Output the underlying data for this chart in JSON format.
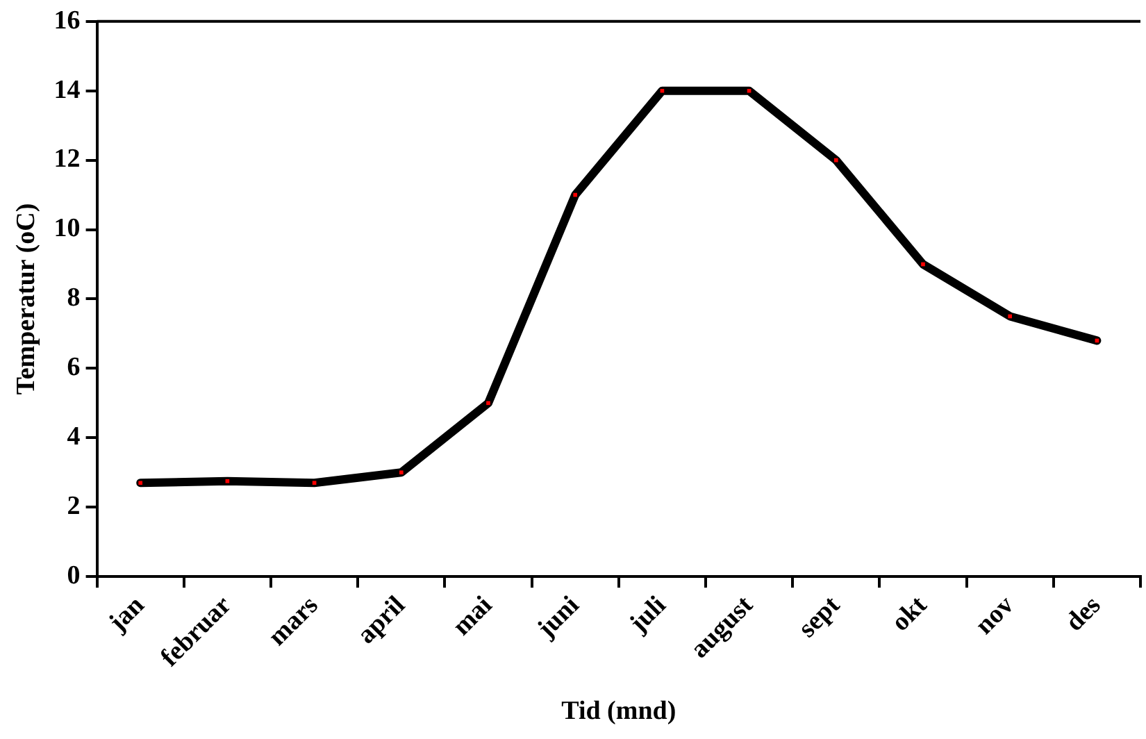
{
  "chart_data": {
    "type": "line",
    "xlabel": "Tid (mnd)",
    "ylabel": "Temperatur (oC)",
    "categories": [
      "jan",
      "februar",
      "mars",
      "april",
      "mai",
      "juni",
      "juli",
      "august",
      "sept",
      "okt",
      "nov",
      "des"
    ],
    "series": [
      {
        "color": "#000000",
        "values": [
          2.7,
          2.75,
          2.7,
          3.0,
          5.0,
          11.0,
          14.0,
          14.0,
          12.0,
          9.0,
          7.5,
          6.8
        ]
      }
    ],
    "ylim": [
      0,
      16
    ],
    "yticks": [
      0,
      2,
      4,
      6,
      8,
      10,
      12,
      14,
      16
    ],
    "grid": false,
    "legend": false,
    "marker": "square",
    "line_style": "solid"
  }
}
